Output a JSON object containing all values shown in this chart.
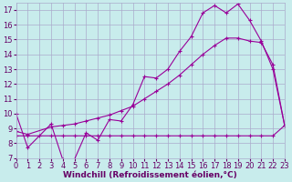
{
  "xlabel": "Windchill (Refroidissement éolien,°C)",
  "background_color": "#c8ecec",
  "grid_color": "#aaaacc",
  "line_color": "#990099",
  "xlim": [
    0,
    23
  ],
  "ylim": [
    7,
    17.5
  ],
  "yticks": [
    7,
    8,
    9,
    10,
    11,
    12,
    13,
    14,
    15,
    16,
    17
  ],
  "xticks": [
    0,
    1,
    2,
    3,
    4,
    5,
    6,
    7,
    8,
    9,
    10,
    11,
    12,
    13,
    14,
    15,
    16,
    17,
    18,
    19,
    20,
    21,
    22,
    23
  ],
  "curve1_x": [
    0,
    1,
    3,
    4,
    5,
    6,
    7,
    8,
    9,
    10,
    11,
    12,
    13,
    14,
    15,
    16,
    17,
    18,
    19,
    20,
    21,
    22,
    23
  ],
  "curve1_y": [
    10.0,
    7.7,
    9.3,
    6.9,
    6.9,
    8.7,
    8.2,
    9.6,
    9.5,
    10.6,
    12.5,
    12.4,
    13.0,
    14.2,
    15.2,
    16.8,
    17.3,
    16.8,
    17.4,
    16.3,
    14.9,
    13.0,
    9.2
  ],
  "curve2_x": [
    0,
    1,
    3,
    4,
    5,
    6,
    7,
    8,
    9,
    10,
    11,
    12,
    13,
    14,
    15,
    16,
    17,
    18,
    19,
    20,
    21,
    22,
    23
  ],
  "curve2_y": [
    8.8,
    8.6,
    9.1,
    9.2,
    9.3,
    9.5,
    9.7,
    9.9,
    10.2,
    10.5,
    11.0,
    11.5,
    12.0,
    12.6,
    13.3,
    14.0,
    14.6,
    15.1,
    15.1,
    14.9,
    14.8,
    13.3,
    9.2
  ],
  "curve3_x": [
    0,
    1,
    2,
    3,
    4,
    5,
    6,
    7,
    8,
    9,
    10,
    11,
    12,
    13,
    14,
    15,
    16,
    17,
    18,
    19,
    20,
    21,
    22,
    23
  ],
  "curve3_y": [
    8.5,
    8.5,
    8.5,
    8.5,
    8.5,
    8.5,
    8.5,
    8.5,
    8.5,
    8.5,
    8.5,
    8.5,
    8.5,
    8.5,
    8.5,
    8.5,
    8.5,
    8.5,
    8.5,
    8.5,
    8.5,
    8.5,
    8.5,
    9.2
  ],
  "font_color": "#660066",
  "xlabel_fontsize": 6.5,
  "tick_fontsize": 6.0
}
